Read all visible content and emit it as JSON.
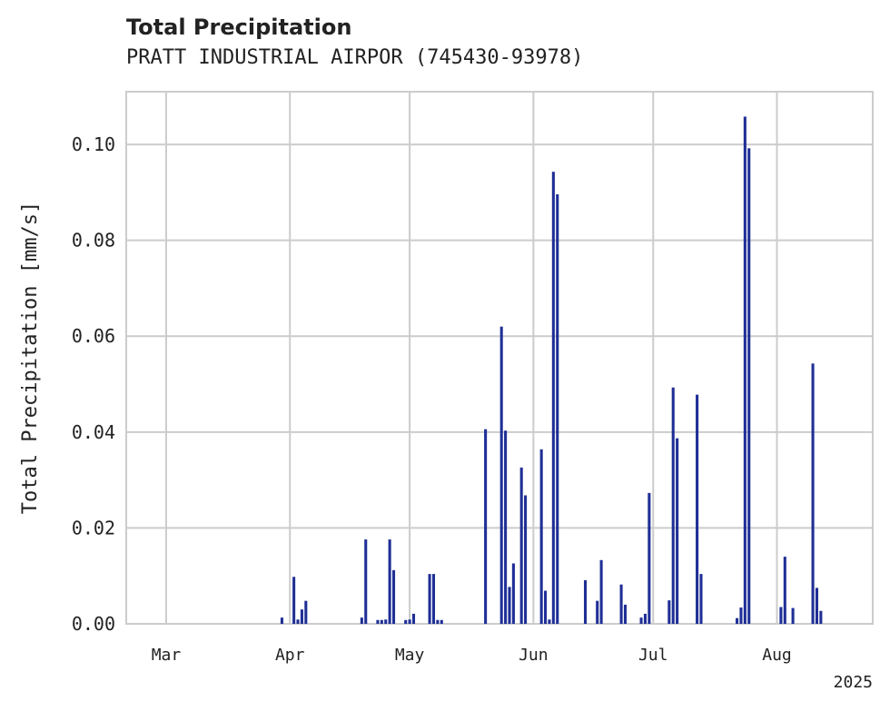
{
  "chart_data": {
    "type": "bar",
    "title": "Total Precipitation",
    "subtitle": "PRATT INDUSTRIAL AIRPOR (745430-93978)",
    "ylabel": "Total Precipitation [mm/s]",
    "xlabel": "",
    "year_label": "2025",
    "ylim": [
      0,
      0.111
    ],
    "xlim": [
      "2025-02-19",
      "2025-08-25"
    ],
    "yticks": [
      {
        "value": 0.0,
        "label": "0.00"
      },
      {
        "value": 0.02,
        "label": "0.02"
      },
      {
        "value": 0.04,
        "label": "0.04"
      },
      {
        "value": 0.06,
        "label": "0.06"
      },
      {
        "value": 0.08,
        "label": "0.08"
      },
      {
        "value": 0.1,
        "label": "0.10"
      }
    ],
    "xticks": [
      {
        "date": "2025-03-01",
        "label": "Mar"
      },
      {
        "date": "2025-04-01",
        "label": "Apr"
      },
      {
        "date": "2025-05-01",
        "label": "May"
      },
      {
        "date": "2025-06-01",
        "label": "Jun"
      },
      {
        "date": "2025-07-01",
        "label": "Jul"
      },
      {
        "date": "2025-08-01",
        "label": "Aug"
      }
    ],
    "grid": true,
    "bar_color": "#1f2f96",
    "series": [
      {
        "x": [
          "2025-03-30",
          "2025-04-02",
          "2025-04-03",
          "2025-04-04",
          "2025-04-05",
          "2025-04-19",
          "2025-04-20",
          "2025-04-23",
          "2025-04-24",
          "2025-04-25",
          "2025-04-26",
          "2025-04-27",
          "2025-04-30",
          "2025-05-01",
          "2025-05-02",
          "2025-05-06",
          "2025-05-07",
          "2025-05-08",
          "2025-05-09",
          "2025-05-20",
          "2025-05-24",
          "2025-05-25",
          "2025-05-26",
          "2025-05-27",
          "2025-05-29",
          "2025-05-30",
          "2025-06-03",
          "2025-06-04",
          "2025-06-05",
          "2025-06-06",
          "2025-06-07",
          "2025-06-14",
          "2025-06-17",
          "2025-06-18",
          "2025-06-23",
          "2025-06-24",
          "2025-06-28",
          "2025-06-29",
          "2025-06-30",
          "2025-07-05",
          "2025-07-06",
          "2025-07-07",
          "2025-07-12",
          "2025-07-13",
          "2025-07-22",
          "2025-07-23",
          "2025-07-24",
          "2025-07-25",
          "2025-08-02",
          "2025-08-03",
          "2025-08-05",
          "2025-08-10",
          "2025-08-11",
          "2025-08-12"
        ],
        "values": [
          0.0013,
          0.0098,
          0.0009,
          0.003,
          0.0048,
          0.0013,
          0.0176,
          0.0008,
          0.0008,
          0.0009,
          0.0176,
          0.0112,
          0.0008,
          0.0009,
          0.0021,
          0.0104,
          0.0104,
          0.0008,
          0.0008,
          0.0406,
          0.062,
          0.0403,
          0.0077,
          0.0126,
          0.0326,
          0.0268,
          0.0364,
          0.0069,
          0.0009,
          0.0943,
          0.0896,
          0.0091,
          0.0048,
          0.0133,
          0.0082,
          0.004,
          0.0013,
          0.0021,
          0.0273,
          0.0049,
          0.0493,
          0.0387,
          0.0478,
          0.0104,
          0.0012,
          0.0034,
          0.1058,
          0.0992,
          0.0035,
          0.014,
          0.0033,
          0.0543,
          0.0075,
          0.0027
        ]
      }
    ]
  }
}
